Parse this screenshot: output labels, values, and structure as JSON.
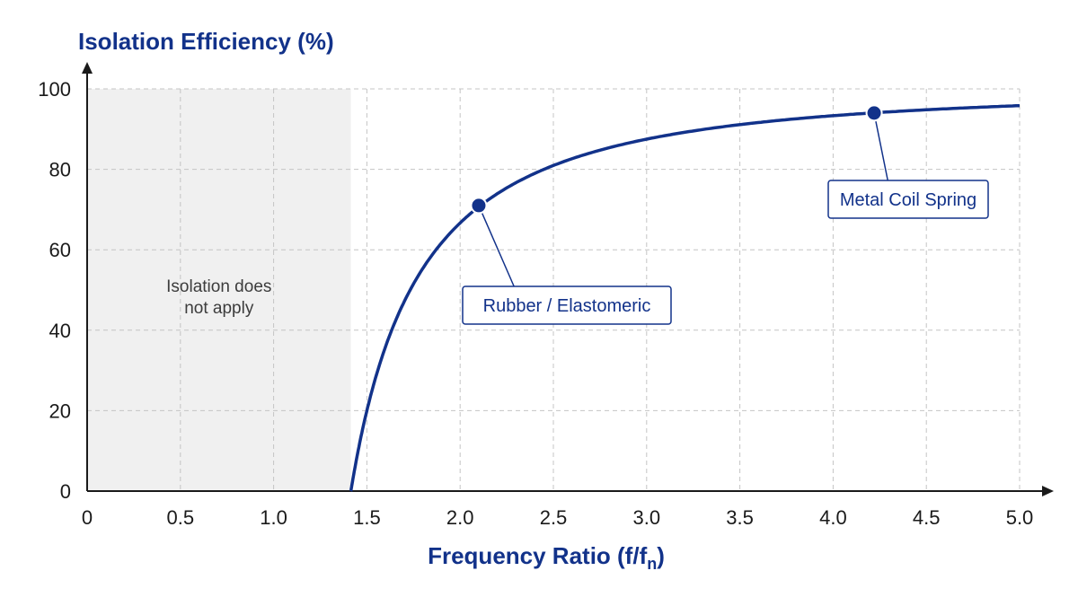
{
  "chart_data": {
    "type": "line",
    "ylabel": "Isolation Efficiency (%)",
    "xlabel_main": "Frequency Ratio (f/f",
    "xlabel_sub": "n",
    "xlabel_close": ")",
    "xlim": [
      0,
      5.0
    ],
    "ylim": [
      0,
      100
    ],
    "x_ticks": [
      "0",
      "0.5",
      "1.0",
      "1.5",
      "2.0",
      "2.5",
      "3.0",
      "3.5",
      "4.0",
      "4.5",
      "5.0"
    ],
    "y_ticks": [
      "0",
      "20",
      "40",
      "60",
      "80",
      "100"
    ],
    "grid": true,
    "shaded_region": {
      "x_range": [
        0,
        1.414
      ],
      "label_line1": "Isolation does",
      "label_line2": "not apply"
    },
    "series": [
      {
        "formula": "100*(1 - 1/(r^2 - 1))",
        "x_start": 1.414,
        "x_end": 5.0,
        "color": "#12328a"
      }
    ],
    "annotations": [
      {
        "label": "Rubber / Elastomeric",
        "x": 2.1,
        "y": 71
      },
      {
        "label": "Metal Coil Spring",
        "x": 4.22,
        "y": 94
      }
    ]
  }
}
